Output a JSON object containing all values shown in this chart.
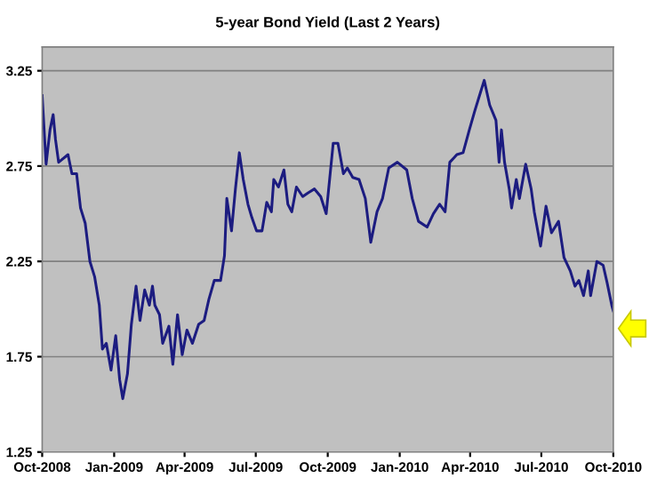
{
  "chart_data": {
    "type": "line",
    "title": "5-year Bond Yield (Last 2 Years)",
    "x": [
      "2008-10-01",
      "2008-10-06",
      "2008-10-11",
      "2008-10-15",
      "2008-10-18",
      "2008-10-22",
      "2008-11-03",
      "2008-11-08",
      "2008-11-14",
      "2008-11-19",
      "2008-11-25",
      "2008-12-01",
      "2008-12-07",
      "2008-12-13",
      "2008-12-17",
      "2008-12-22",
      "2008-12-28",
      "2009-01-03",
      "2009-01-08",
      "2009-01-12",
      "2009-01-18",
      "2009-01-23",
      "2009-01-29",
      "2009-02-03",
      "2009-02-09",
      "2009-02-15",
      "2009-02-19",
      "2009-02-22",
      "2009-02-28",
      "2009-03-04",
      "2009-03-12",
      "2009-03-17",
      "2009-03-23",
      "2009-03-29",
      "2009-04-04",
      "2009-04-11",
      "2009-04-19",
      "2009-04-26",
      "2009-05-02",
      "2009-05-09",
      "2009-05-17",
      "2009-05-22",
      "2009-05-25",
      "2009-05-31",
      "2009-06-05",
      "2009-06-10",
      "2009-06-15",
      "2009-06-21",
      "2009-06-26",
      "2009-07-02",
      "2009-07-09",
      "2009-07-15",
      "2009-07-21",
      "2009-07-24",
      "2009-07-30",
      "2009-08-06",
      "2009-08-11",
      "2009-08-16",
      "2009-08-22",
      "2009-08-30",
      "2009-09-06",
      "2009-09-14",
      "2009-09-22",
      "2009-09-29",
      "2009-10-08",
      "2009-10-14",
      "2009-10-21",
      "2009-10-26",
      "2009-11-02",
      "2009-11-10",
      "2009-11-18",
      "2009-11-25",
      "2009-12-03",
      "2009-12-10",
      "2009-12-18",
      "2009-12-29",
      "2010-01-10",
      "2010-01-17",
      "2010-01-25",
      "2010-02-05",
      "2010-02-13",
      "2010-02-21",
      "2010-02-28",
      "2010-03-06",
      "2010-03-15",
      "2010-03-23",
      "2010-03-31",
      "2010-04-07",
      "2010-04-13",
      "2010-04-19",
      "2010-04-26",
      "2010-05-04",
      "2010-05-08",
      "2010-05-11",
      "2010-05-15",
      "2010-05-21",
      "2010-05-24",
      "2010-05-30",
      "2010-06-03",
      "2010-06-11",
      "2010-06-18",
      "2010-06-22",
      "2010-06-30",
      "2010-07-07",
      "2010-07-14",
      "2010-07-23",
      "2010-07-30",
      "2010-08-07",
      "2010-08-13",
      "2010-08-18",
      "2010-08-24",
      "2010-08-30",
      "2010-09-02",
      "2010-09-10",
      "2010-09-18",
      "2010-09-23",
      "2010-09-29",
      "2010-10-01"
    ],
    "series": [
      {
        "color": "#1c1c80",
        "values": [
          3.12,
          2.76,
          2.94,
          3.02,
          2.89,
          2.77,
          2.81,
          2.71,
          2.71,
          2.53,
          2.45,
          2.25,
          2.17,
          2.02,
          1.79,
          1.82,
          1.68,
          1.86,
          1.63,
          1.53,
          1.66,
          1.92,
          2.12,
          1.94,
          2.1,
          2.02,
          2.12,
          2.02,
          1.97,
          1.82,
          1.91,
          1.71,
          1.97,
          1.76,
          1.89,
          1.82,
          1.92,
          1.94,
          2.05,
          2.15,
          2.15,
          2.28,
          2.58,
          2.41,
          2.63,
          2.82,
          2.68,
          2.55,
          2.48,
          2.41,
          2.41,
          2.56,
          2.51,
          2.68,
          2.64,
          2.73,
          2.55,
          2.51,
          2.64,
          2.59,
          2.61,
          2.63,
          2.59,
          2.5,
          2.87,
          2.87,
          2.71,
          2.74,
          2.69,
          2.68,
          2.58,
          2.35,
          2.51,
          2.58,
          2.74,
          2.77,
          2.73,
          2.58,
          2.46,
          2.43,
          2.5,
          2.55,
          2.51,
          2.77,
          2.81,
          2.82,
          2.94,
          3.04,
          3.12,
          3.2,
          3.07,
          2.99,
          2.77,
          2.94,
          2.77,
          2.63,
          2.53,
          2.68,
          2.58,
          2.76,
          2.63,
          2.51,
          2.33,
          2.54,
          2.4,
          2.46,
          2.27,
          2.2,
          2.12,
          2.15,
          2.07,
          2.2,
          2.07,
          2.25,
          2.23,
          2.14,
          2.02,
          1.99
        ]
      }
    ],
    "xlim": [
      "2008-10-01",
      "2010-10-01"
    ],
    "xticks": [
      {
        "value": "2008-10-01",
        "label": "Oct-2008"
      },
      {
        "value": "2009-01-01",
        "label": "Jan-2009"
      },
      {
        "value": "2009-04-01",
        "label": "Apr-2009"
      },
      {
        "value": "2009-07-01",
        "label": "Jul-2009"
      },
      {
        "value": "2009-10-01",
        "label": "Oct-2009"
      },
      {
        "value": "2010-01-01",
        "label": "Jan-2010"
      },
      {
        "value": "2010-04-01",
        "label": "Apr-2010"
      },
      {
        "value": "2010-07-01",
        "label": "Jul-2010"
      },
      {
        "value": "2010-10-01",
        "label": "Oct-2010"
      }
    ],
    "ylim": [
      1.25,
      3.375
    ],
    "yticks": [
      1.25,
      1.75,
      2.25,
      2.75,
      3.25
    ],
    "grid": "y",
    "marker": "none",
    "line_style": "solid"
  }
}
